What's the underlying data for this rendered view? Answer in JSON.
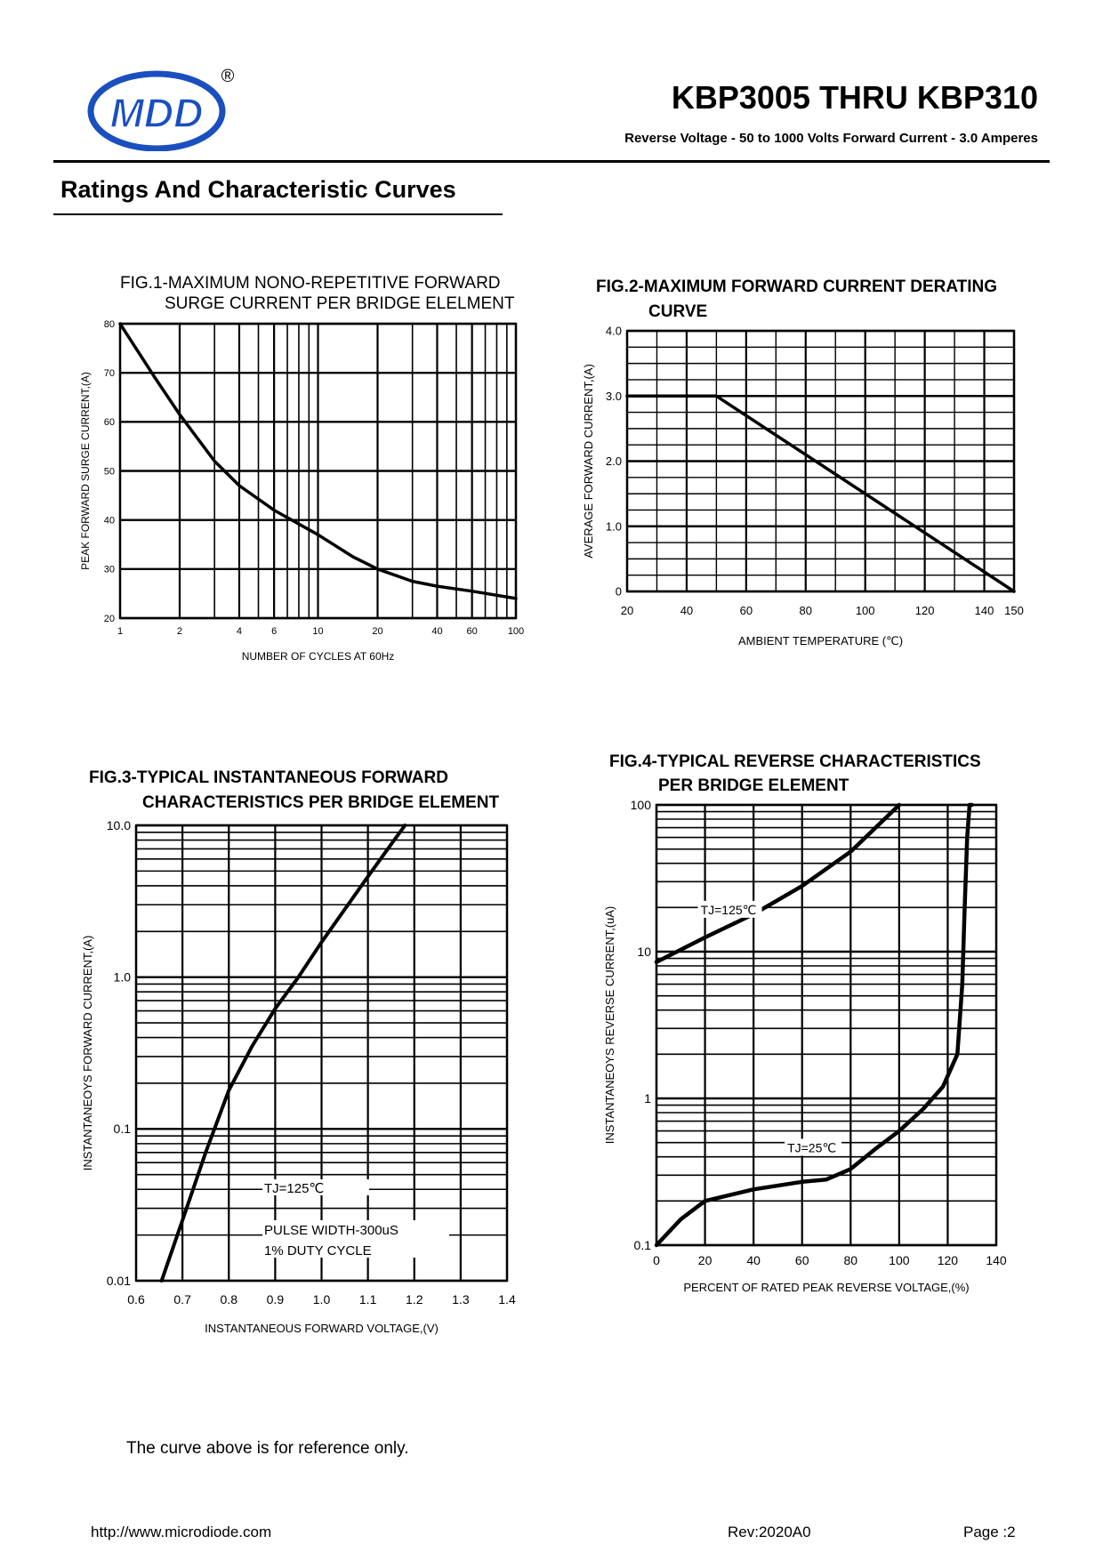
{
  "header": {
    "logo_text": "MDD",
    "registered_mark": "®",
    "part_title": "KBP3005 THRU KBP310",
    "subtitle": "Reverse Voltage - 50 to 1000 Volts  Forward Current - 3.0 Amperes"
  },
  "section_title": "Ratings And Characteristic Curves",
  "chart_data": [
    {
      "type": "line",
      "title": "FIG.1-MAXIMUM NONO-REPETITIVE FORWARD",
      "title_line2": "SURGE CURRENT PER BRIDGE ELELMENT",
      "xlabel": "NUMBER OF CYCLES AT 60Hz",
      "ylabel": "PEAK FORWARD SURGE CURRENT,(A)",
      "x_scale": "log",
      "xlim": [
        1,
        100
      ],
      "ylim": [
        20,
        80
      ],
      "x_tick_labels": [
        "1",
        "2",
        "4",
        "6",
        "10",
        "20",
        "40",
        "60",
        "100"
      ],
      "x_ticks": [
        1,
        2,
        4,
        6,
        10,
        20,
        40,
        60,
        100
      ],
      "y_ticks": [
        20,
        30,
        40,
        50,
        60,
        70,
        80
      ],
      "grid": true,
      "series": [
        {
          "name": "surge",
          "x": [
            1,
            1.5,
            2,
            3,
            4,
            6,
            10,
            15,
            20,
            30,
            40,
            60,
            100
          ],
          "y": [
            80,
            69,
            61.5,
            52,
            47,
            42,
            37,
            32.5,
            30,
            27.5,
            26.5,
            25.5,
            24
          ]
        }
      ]
    },
    {
      "type": "line",
      "title": "FIG.2-MAXIMUM FORWARD CURRENT DERATING",
      "title_line2": "CURVE",
      "xlabel": "AMBIENT TEMPERATURE (℃)",
      "ylabel": "AVERAGE FORWARD CURRENT,(A)",
      "xlim": [
        20,
        150
      ],
      "ylim": [
        0,
        4.0
      ],
      "x_ticks": [
        20,
        40,
        60,
        80,
        100,
        120,
        140,
        150
      ],
      "x_tick_labels": [
        "20",
        "40",
        "60",
        "80",
        "100",
        "120",
        "140",
        "150"
      ],
      "y_ticks": [
        0,
        1.0,
        2.0,
        3.0,
        4.0
      ],
      "y_tick_labels": [
        "0",
        "1.0",
        "2.0",
        "3.0",
        "4.0"
      ],
      "grid": true,
      "series": [
        {
          "name": "derating",
          "x": [
            20,
            50,
            150
          ],
          "y": [
            3.0,
            3.0,
            0
          ]
        }
      ]
    },
    {
      "type": "line",
      "title": "FIG.3-TYPICAL INSTANTANEOUS FORWARD",
      "title_line2": "CHARACTERISTICS PER BRIDGE ELEMENT",
      "xlabel": "INSTANTANEOUS FORWARD VOLTAGE,(V)",
      "ylabel": "INSTANTANEOYS FORWARD CURRENT,(A)",
      "y_scale": "log",
      "xlim": [
        0.6,
        1.4
      ],
      "ylim": [
        0.01,
        10.0
      ],
      "x_ticks": [
        0.6,
        0.7,
        0.8,
        0.9,
        1.0,
        1.1,
        1.2,
        1.3,
        1.4
      ],
      "x_tick_labels": [
        "0.6",
        "0.7",
        "0.8",
        "0.9",
        "1.0",
        "1.1",
        "1.2",
        "1.3",
        "1.4"
      ],
      "y_ticks": [
        0.01,
        0.1,
        1.0,
        10.0
      ],
      "y_tick_labels": [
        "0.01",
        "0.1",
        "1.0",
        "10.0"
      ],
      "grid": true,
      "annotations": [
        "TJ=125℃",
        "PULSE WIDTH-300uS",
        "1% DUTY CYCLE"
      ],
      "series": [
        {
          "name": "TJ=125℃",
          "x": [
            0.655,
            0.7,
            0.75,
            0.8,
            0.85,
            0.9,
            0.95,
            1.0,
            1.05,
            1.1,
            1.15,
            1.18
          ],
          "y": [
            0.01,
            0.025,
            0.07,
            0.18,
            0.35,
            0.62,
            1.0,
            1.7,
            2.8,
            4.6,
            7.5,
            10.0
          ]
        }
      ]
    },
    {
      "type": "line",
      "title": "FIG.4-TYPICAL REVERSE CHARACTERISTICS",
      "title_line2": "PER BRIDGE ELEMENT",
      "xlabel": "PERCENT OF RATED PEAK REVERSE VOLTAGE,(%)",
      "ylabel": "INSTANTANEOYS REVERSE CURRENT,(uA)",
      "y_scale": "log",
      "xlim": [
        0,
        140
      ],
      "ylim": [
        0.1,
        100
      ],
      "x_ticks": [
        0,
        20,
        40,
        60,
        80,
        100,
        120,
        140
      ],
      "x_tick_labels": [
        "0",
        "20",
        "40",
        "60",
        "80",
        "100",
        "120",
        "140"
      ],
      "y_ticks": [
        0.1,
        1,
        10,
        100
      ],
      "y_tick_labels": [
        "0.1",
        "1",
        "10",
        "100"
      ],
      "grid": true,
      "series": [
        {
          "name": "TJ=125℃",
          "x": [
            0,
            20,
            40,
            60,
            80,
            100
          ],
          "y": [
            8.5,
            12.5,
            18,
            28,
            48,
            100
          ]
        },
        {
          "name": "TJ=25℃",
          "x": [
            0,
            10,
            20,
            40,
            60,
            70,
            80,
            90,
            100,
            110,
            118,
            124,
            126,
            127,
            128,
            129,
            130
          ],
          "y": [
            0.1,
            0.15,
            0.2,
            0.24,
            0.27,
            0.28,
            0.33,
            0.45,
            0.6,
            0.85,
            1.2,
            2.0,
            6.0,
            20,
            60,
            100,
            100
          ]
        }
      ]
    }
  ],
  "note": "The curve above is for reference only.",
  "footer": {
    "url": "http://www.microdiode.com",
    "rev": "Rev:2020A0",
    "page": "Page :2"
  },
  "colors": {
    "logo_blue": "#1a4fc0",
    "ink": "#000000"
  }
}
